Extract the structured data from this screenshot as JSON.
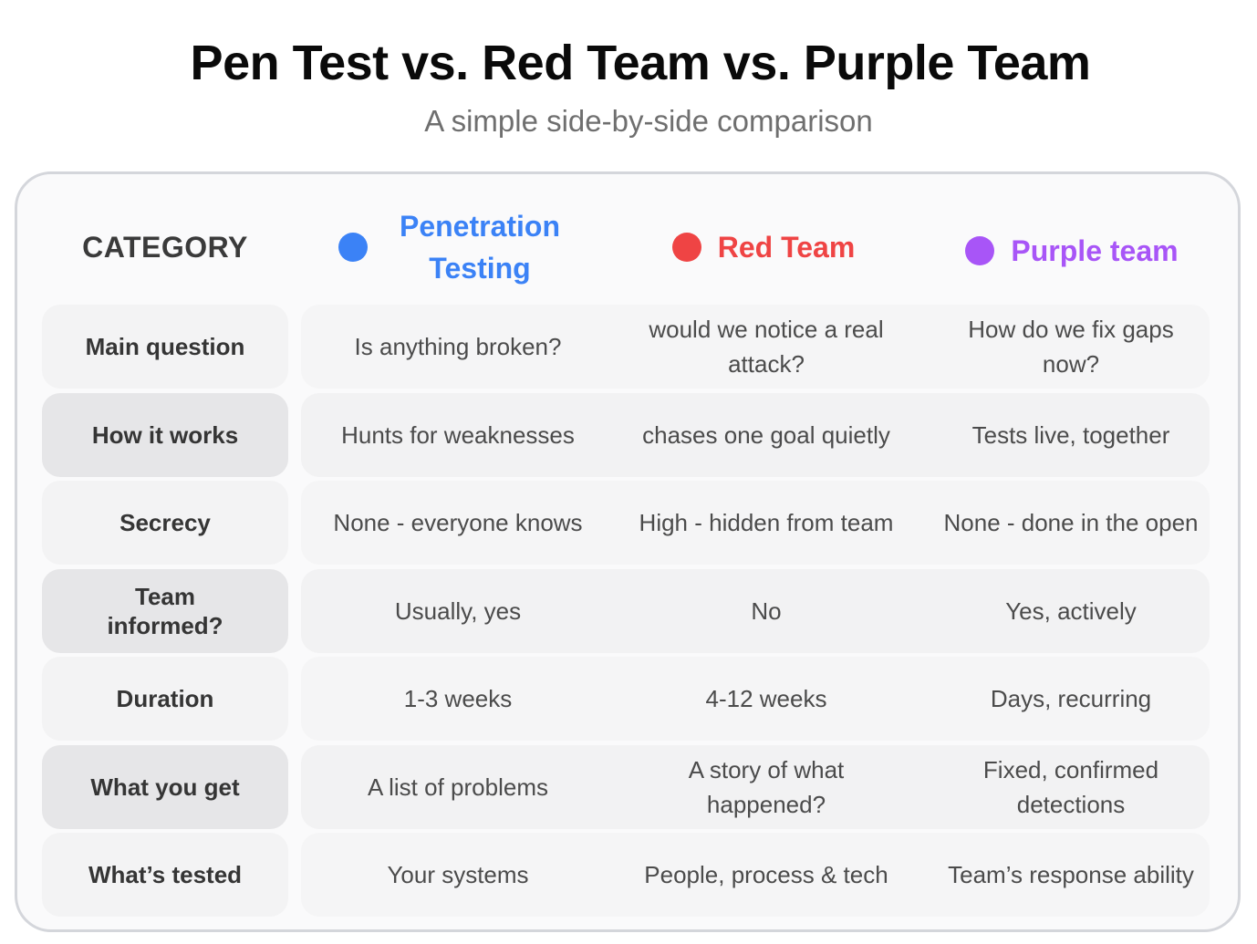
{
  "title": "Pen Test vs. Red Team vs. Purple Team",
  "subtitle": "A simple side-by-side comparison",
  "header": {
    "category": "CATEGORY",
    "columns": [
      {
        "label": "Penetration Testing",
        "color": "#3b82f6"
      },
      {
        "label": "Red Team",
        "color": "#ef4444"
      },
      {
        "label": "Purple team",
        "color": "#a855f7"
      }
    ]
  },
  "rows": [
    {
      "category": "Main question",
      "values": [
        "Is anything broken?",
        "would we notice a real attack?",
        "How do we fix gaps now?"
      ]
    },
    {
      "category": "How it works",
      "values": [
        "Hunts for weaknesses",
        "chases one goal quietly",
        "Tests live, together"
      ]
    },
    {
      "category": "Secrecy",
      "values": [
        "None - everyone knows",
        "High - hidden from team",
        "None - done in the open"
      ]
    },
    {
      "category": "Team informed?",
      "values": [
        "Usually, yes",
        "No",
        "Yes, actively"
      ]
    },
    {
      "category": "Duration",
      "values": [
        "1-3 weeks",
        "4-12 weeks",
        "Days, recurring"
      ]
    },
    {
      "category": "What you get",
      "values": [
        "A list of problems",
        "A story of what happened?",
        "Fixed, confirmed detections"
      ]
    },
    {
      "category": "What’s tested",
      "values": [
        "Your systems",
        "People, process & tech",
        "Team’s response ability"
      ]
    }
  ]
}
